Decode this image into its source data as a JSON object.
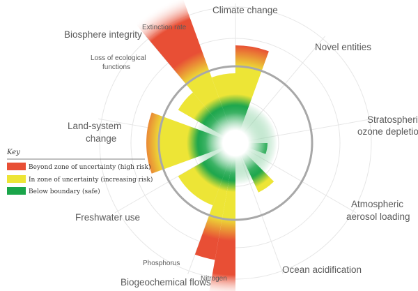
{
  "labels": {
    "climate_change": "Climate change",
    "novel_entities": "Novel entities",
    "ozone_1": "Stratospheric",
    "ozone_2": "ozone depletion",
    "aerosol_1": "Atmospheric",
    "aerosol_2": "aerosol loading",
    "ocean_acidification": "Ocean acidification",
    "biogeochemical_flows": "Biogeochemical flows",
    "nitrogen": "Nitrogen",
    "phosphorus": "Phosphorus",
    "freshwater_use": "Freshwater use",
    "land_system_1": "Land-system",
    "land_system_2": "change",
    "biosphere_integrity": "Biosphere integrity",
    "extinction_rate": "Extinction rate",
    "loss_functions_1": "Loss of ecological",
    "loss_functions_2": "functions"
  },
  "key": {
    "title": "Key",
    "items": [
      {
        "label": "Beyond zone of uncertainty (high risk)",
        "color": "#e84f35"
      },
      {
        "label": "In zone of uncertainty (increasing risk)",
        "color": "#ede536"
      },
      {
        "label": "Below boundary (safe)",
        "color": "#1aa54a"
      }
    ]
  },
  "colors": {
    "high_risk": "#e84f35",
    "increasing_risk": "#ede536",
    "safe": "#1aa54a",
    "boundary": "#a8a8a8",
    "grid": "#e6e6e6"
  }
}
